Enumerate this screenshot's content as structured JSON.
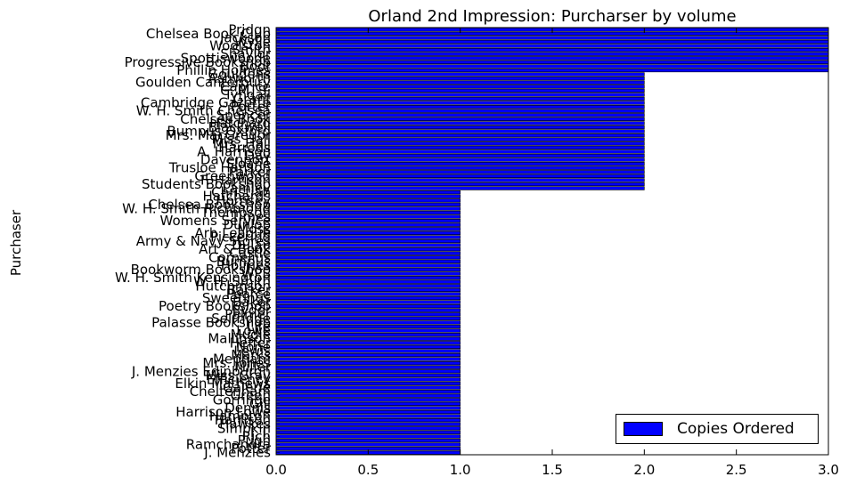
{
  "chart_data": {
    "type": "bar",
    "orientation": "horizontal",
    "title": "Orland 2nd Impression: Purcharser by volume",
    "ylabel": "Purchaser",
    "xlabel": "",
    "xlim": [
      0,
      3
    ],
    "xticks": [
      "0.0",
      "0.5",
      "1.0",
      "1.5",
      "2.0",
      "2.5",
      "3.0"
    ],
    "grid": false,
    "legend_position": "bottom-right",
    "bar_color": "#0000ff",
    "edge_color": "#000000",
    "series": [
      {
        "name": "Copies Ordered"
      }
    ],
    "categories": [
      "Pridgn",
      "Chelsea Book Club",
      "Jackson",
      "Wylie",
      "Woolston",
      "Smith",
      "Shaylor",
      "Spottiswoode",
      "Progressive Bookshop",
      "Boot",
      "Phillip Holmes",
      "Gouldens",
      "Ashworth",
      "Goulden Canterbury",
      "Caprice",
      "C. M. S.",
      "Tyndall",
      "Grant",
      "Cambridge Gazette",
      "Porter",
      "W. H. Smith Chelsea",
      "Spencer",
      "Chelsea Book",
      "Hatchard",
      "Blackwell",
      "Bumpus Oxford",
      "Mrs. MacGregor",
      "Miss Hall",
      "Mrs. Hall",
      "Harrods",
      "A. Harrison",
      "Day",
      "Davenport",
      "Sloane",
      "Trusloe Hanson",
      "Parker",
      "Greenwood",
      "F. Harrison",
      "Students Bookshop",
      "Lamley",
      "Christian",
      "Hatchards",
      "Hornsey",
      "Chelsea Bookshop",
      "W. H. Smith Richmond",
      "Thompson",
      "Times",
      "Womens Service",
      "Dunlop",
      "Moss",
      "Arb League",
      "Pickering",
      "Army & Navy Stores",
      "Dulau",
      "Art & Book",
      "Castle",
      "Cornelius",
      "Bumpus",
      "Holmes",
      "Bookworm Bookshop",
      "WPS",
      "W. H. Smith Kensington",
      "W. H. Smith",
      "Hutchinson",
      "Barker",
      "Pearce",
      "Sweetings",
      "Baker",
      "Poetry Bookshop",
      "Ryder",
      "Palmer",
      "Selfridge",
      "Palasse Bookshop",
      "Life",
      "Lowe",
      "Mudie",
      "Mallinson",
      "Heffer",
      "None",
      "Lewis",
      "Marks",
      "Mepham",
      "Mrs. Jones",
      "Miller",
      "J. Menzies Edinburgh",
      "Miss Gray",
      "Efficiency",
      "Elkin Mathews",
      "Galerie",
      "Cheltenham",
      "Green",
      "Gorringe",
      "Gill",
      "Dennis",
      "Harrison Lowe",
      "Hampton",
      "Harrison",
      "Hawkes",
      "Simpkin",
      "I. I.",
      "Rich",
      "Pugh",
      "Ramchandra",
      "Potter",
      "J. Menzies"
    ],
    "values": [
      3,
      3,
      3,
      3,
      3,
      3,
      3,
      3,
      3,
      3,
      3,
      2,
      2,
      2,
      2,
      2,
      2,
      2,
      2,
      2,
      2,
      2,
      2,
      2,
      2,
      2,
      2,
      2,
      2,
      2,
      2,
      2,
      2,
      2,
      2,
      2,
      2,
      2,
      2,
      2,
      1,
      1,
      1,
      1,
      1,
      1,
      1,
      1,
      1,
      1,
      1,
      1,
      1,
      1,
      1,
      1,
      1,
      1,
      1,
      1,
      1,
      1,
      1,
      1,
      1,
      1,
      1,
      1,
      1,
      1,
      1,
      1,
      1,
      1,
      1,
      1,
      1,
      1,
      1,
      1,
      1,
      1,
      1,
      1,
      1,
      1,
      1,
      1,
      1,
      1,
      1,
      1,
      1,
      1,
      1,
      1,
      1,
      1,
      1,
      1,
      1,
      1,
      1,
      1,
      1
    ]
  }
}
